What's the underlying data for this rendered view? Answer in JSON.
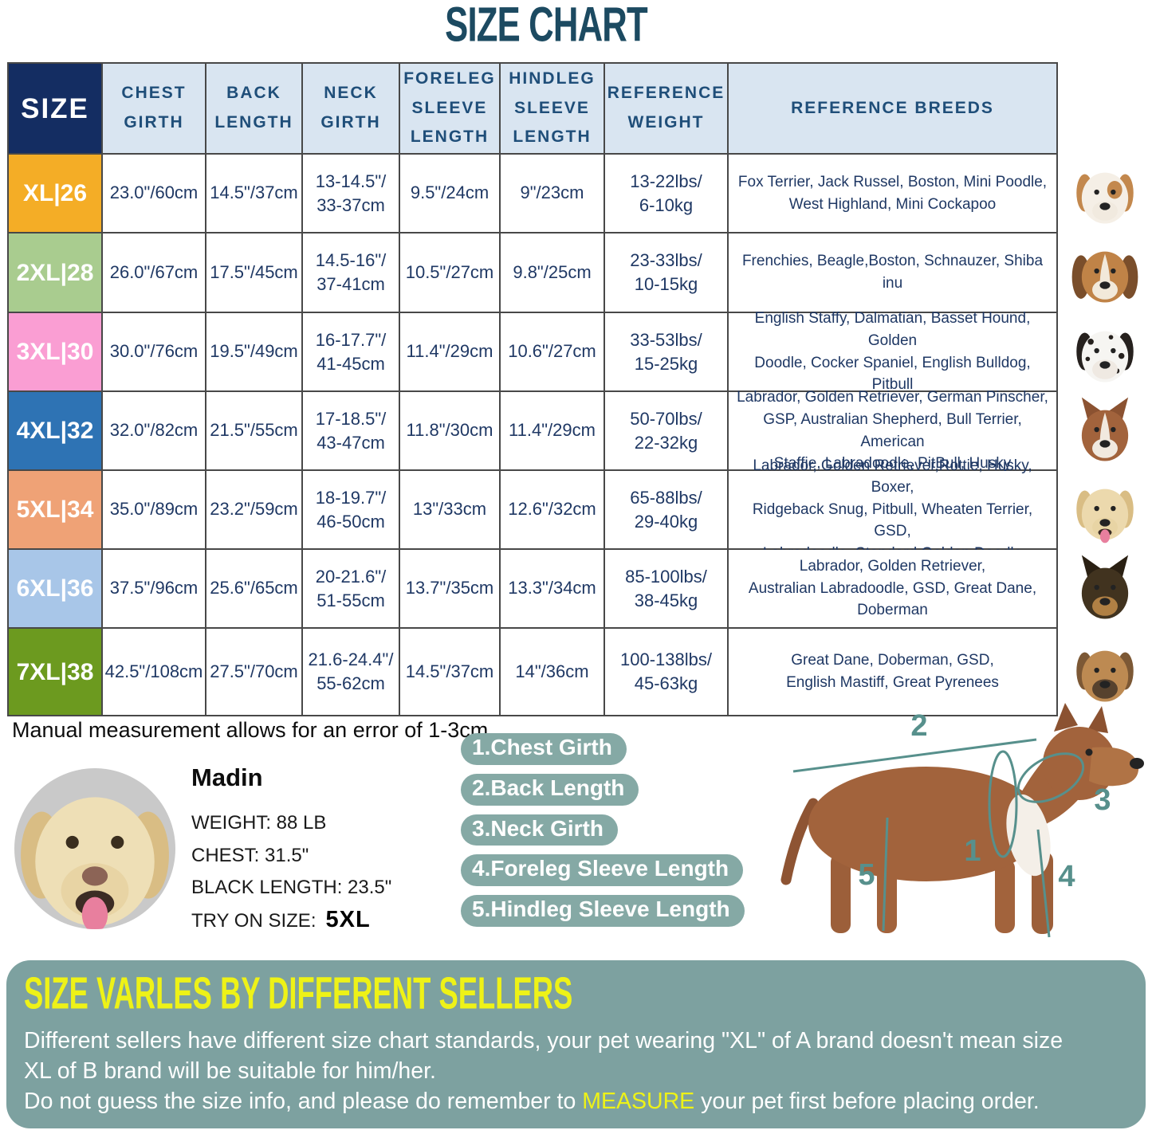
{
  "title": "SIZE CHART",
  "table": {
    "headers": [
      "SIZE",
      "CHEST\nGIRTH",
      "BACK\nLENGTH",
      "NECK\nGIRTH",
      "FORELEG\nSLEEVE\nLENGTH",
      "HINDLEG\nSLEEVE\nLENGTH",
      "REFERENCE\nWEIGHT",
      "REFERENCE BREEDS"
    ],
    "rows": [
      {
        "size": "XL|26",
        "color": "#F4AD26",
        "chest": "23.0\"/60cm",
        "back": "14.5\"/37cm",
        "neck": "13-14.5\"/\n33-37cm",
        "foreleg": "9.5\"/24cm",
        "hindleg": "9\"/23cm",
        "weight": "13-22lbs/\n6-10kg",
        "breeds": "Fox Terrier, Jack Russel, Boston, Mini Poodle,\nWest Highland, Mini Cockapoo",
        "dog": "jack-russell"
      },
      {
        "size": "2XL|28",
        "color": "#A9CC8F",
        "chest": "26.0\"/67cm",
        "back": "17.5\"/45cm",
        "neck": "14.5-16\"/\n37-41cm",
        "foreleg": "10.5\"/27cm",
        "hindleg": "9.8\"/25cm",
        "weight": "23-33lbs/\n10-15kg",
        "breeds": "Frenchies, Beagle,Boston, Schnauzer, Shiba inu",
        "dog": "beagle"
      },
      {
        "size": "3XL|30",
        "color": "#FA9ED3",
        "chest": "30.0\"/76cm",
        "back": "19.5\"/49cm",
        "neck": "16-17.7\"/\n41-45cm",
        "foreleg": "11.4\"/29cm",
        "hindleg": "10.6\"/27cm",
        "weight": "33-53lbs/\n15-25kg",
        "breeds": "English Staffy, Dalmatian, Basset Hound, Golden\nDoodle, Cocker Spaniel, English Bulldog, Pitbull",
        "dog": "dalmatian"
      },
      {
        "size": "4XL|32",
        "color": "#2E73B4",
        "chest": "32.0\"/82cm",
        "back": "21.5\"/55cm",
        "neck": "17-18.5\"/\n43-47cm",
        "foreleg": "11.8\"/30cm",
        "hindleg": "11.4\"/29cm",
        "weight": "50-70lbs/\n22-32kg",
        "breeds": "Labrador, Golden Retriever, German Pinscher,\nGSP, Australian Shepherd, Bull Terrier, American\nStaffie, Labradoodle, PitBull, Husky",
        "dog": "amstaff"
      },
      {
        "size": "5XL|34",
        "color": "#EFA276",
        "chest": "35.0\"/89cm",
        "back": "23.2\"/59cm",
        "neck": "18-19.7\"/\n46-50cm",
        "foreleg": "13\"/33cm",
        "hindleg": "12.6\"/32cm",
        "weight": "65-88lbs/\n29-40kg",
        "breeds": "Labrador, Golden Retriever,Rottie, Husky, Boxer,\nRidgeback Snug, Pitbull, Wheaten Terrier, GSD,\nLabradoodle,  Standard Golden Doodle",
        "dog": "labrador"
      },
      {
        "size": "6XL|36",
        "color": "#A8C6E8",
        "chest": "37.5\"/96cm",
        "back": "25.6\"/65cm",
        "neck": "20-21.6\"/\n51-55cm",
        "foreleg": "13.7\"/35cm",
        "hindleg": "13.3\"/34cm",
        "weight": "85-100lbs/\n38-45kg",
        "breeds": "Labrador, Golden Retriever,\nAustralian Labradoodle, GSD, Great Dane,\nDoberman",
        "dog": "german-shepherd"
      },
      {
        "size": "7XL|38",
        "color": "#6C9A1F",
        "chest": "42.5\"/108cm",
        "back": "27.5\"/70cm",
        "neck": "21.6-24.4\"/\n55-62cm",
        "foreleg": "14.5\"/37cm",
        "hindleg": "14\"/36cm",
        "weight": "100-138lbs/\n45-63kg",
        "breeds": "Great Dane, Doberman, GSD,\nEnglish Mastiff, Great Pyrenees",
        "dog": "great-dane"
      }
    ]
  },
  "note": "Manual measurement allows for an error of 1-3cm",
  "model": {
    "name": "Madin",
    "weight": "WEIGHT: 88 LB",
    "chest": "CHEST: 31.5\"",
    "back_length": "BLACK LENGTH: 23.5\"",
    "try_on_label": "TRY ON SIZE:",
    "try_on_size": "5XL"
  },
  "measure_labels": [
    "1.Chest Girth",
    "2.Back Length",
    "3.Neck Girth",
    "4.Foreleg Sleeve Length",
    "5.Hindleg Sleeve Length"
  ],
  "diagram_numbers": [
    "1",
    "2",
    "3",
    "4",
    "5"
  ],
  "notice": {
    "title": "SIZE VARLES BY DIFFERENT SELLERS",
    "line1": "Different sellers have different size chart standards, your pet wearing \"XL\" of A brand doesn't mean size",
    "line2": " XL of B brand will be suitable for him/her.",
    "line3_before": "Do not guess the size info, and please do remember to ",
    "line3_highlight": "MEASURE",
    "line3_after": " your pet first before placing order."
  },
  "colors": {
    "title": "#1c4a61",
    "header_bg": "#d9e5f1",
    "header_text": "#1f4e79",
    "size_header_bg": "#142d62",
    "cell_text": "#1f3864",
    "border": "#484848",
    "pill_bg": "#85a9a5",
    "notice_bg": "#7da1a0",
    "notice_title": "#eef217",
    "highlight": "#eef217",
    "diagram_line": "#57908c"
  }
}
